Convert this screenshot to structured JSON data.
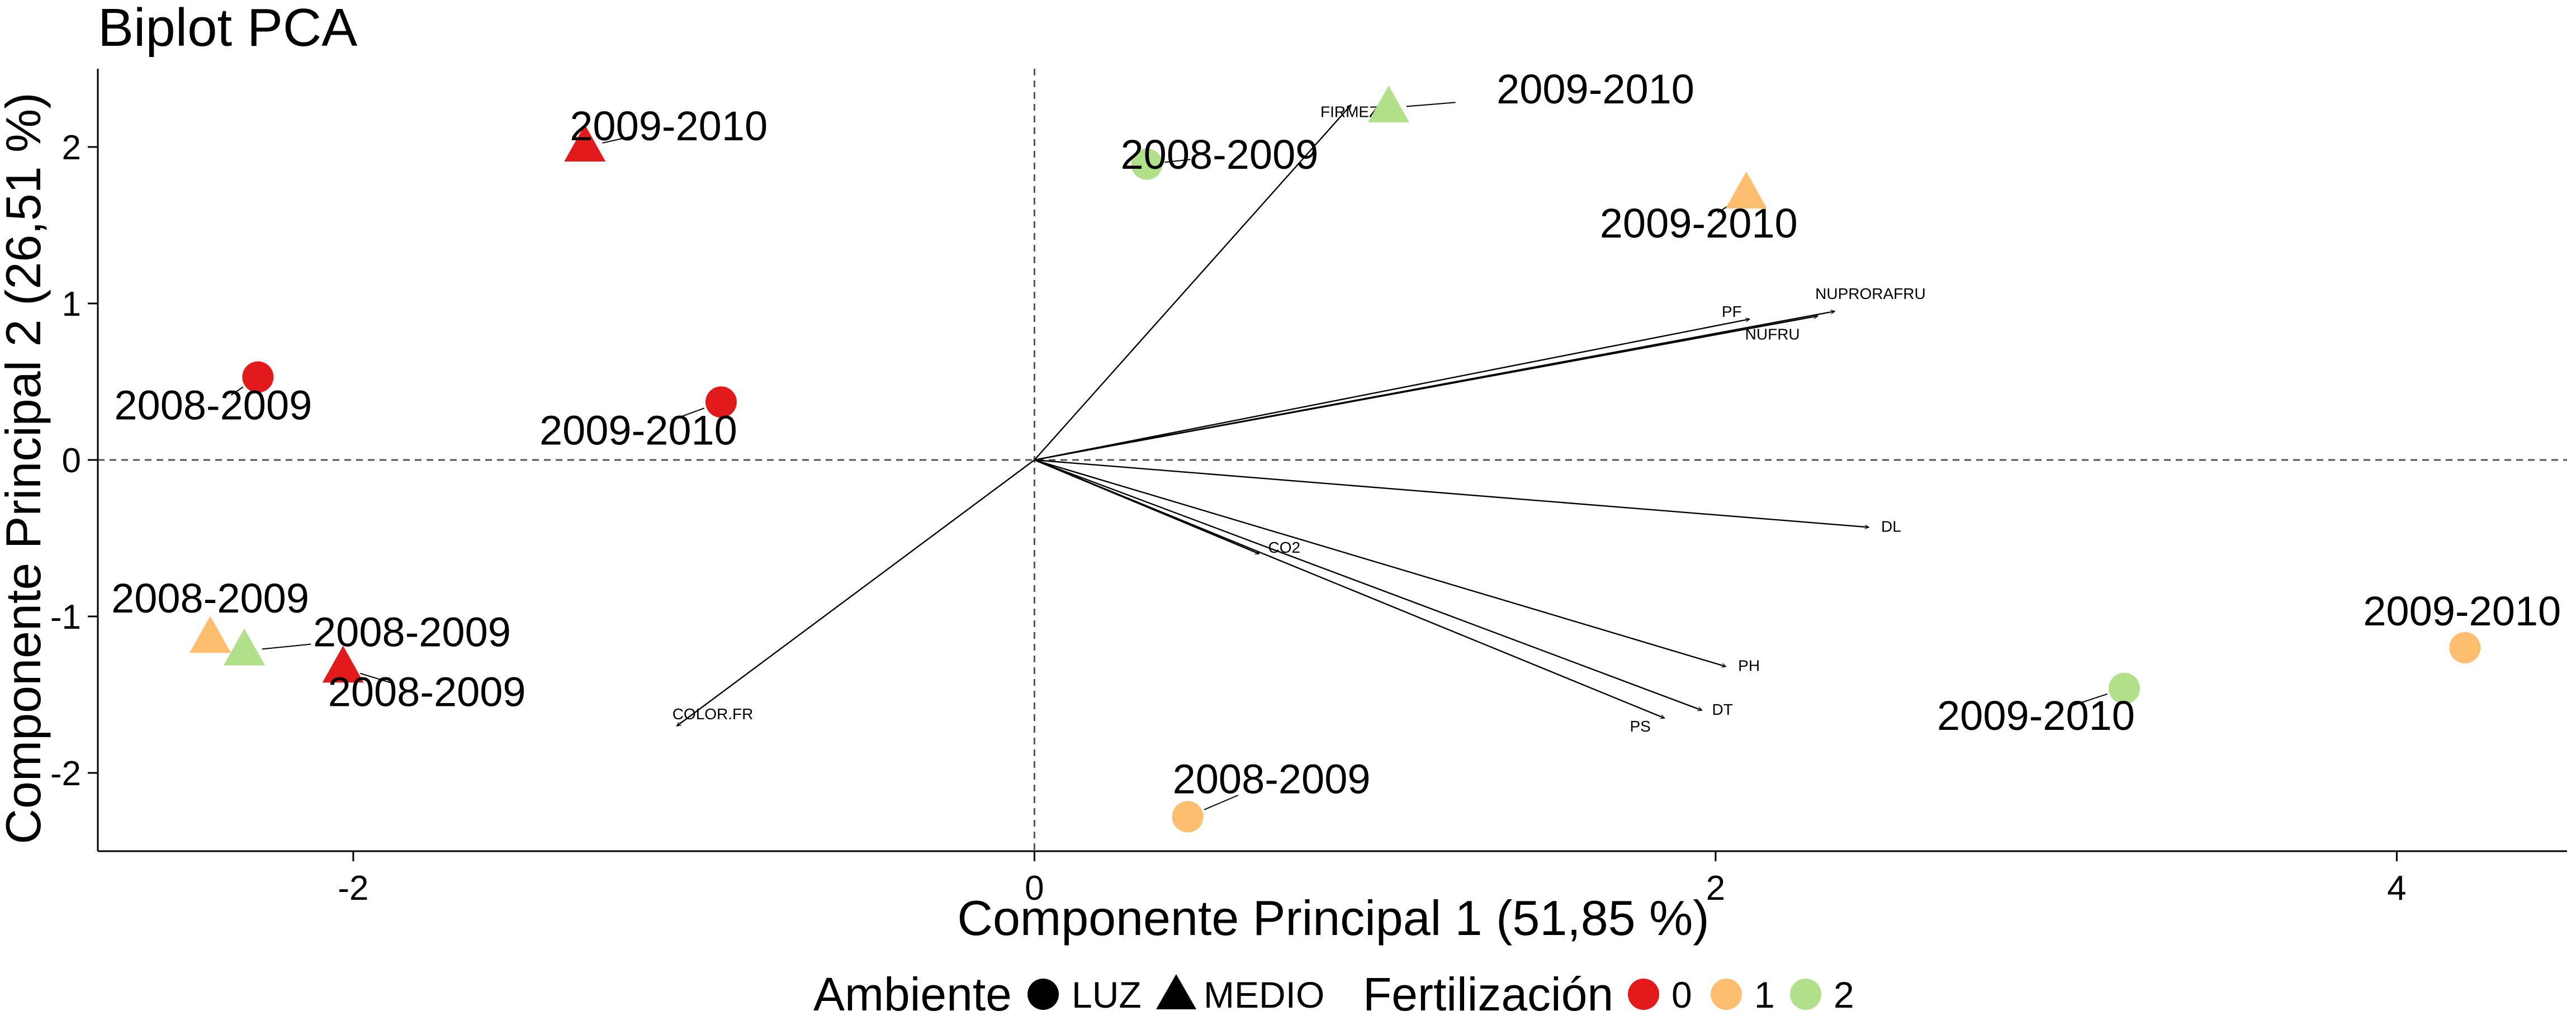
{
  "chart_data": {
    "type": "scatter",
    "title": "Biplot PCA",
    "xlabel": "Componente Principal 1 (51,85 %)",
    "ylabel": "Componente Principal 2 (26,51 %)",
    "xlim": [
      -2.75,
      4.5
    ],
    "ylim": [
      -2.5,
      2.5
    ],
    "x_ticks": [
      -2,
      0,
      2,
      4
    ],
    "y_ticks": [
      -2,
      -1,
      0,
      1,
      2
    ],
    "grid": false,
    "reference_lines": {
      "x": 0,
      "y": 0,
      "style": "dashed"
    },
    "points": [
      {
        "x": -1.32,
        "y": 2.0,
        "ambiente": "MEDIO",
        "fert": "0",
        "label": "2009-2010"
      },
      {
        "x": 1.04,
        "y": 2.25,
        "ambiente": "MEDIO",
        "fert": "2",
        "label": "2009-2010"
      },
      {
        "x": 0.33,
        "y": 1.89,
        "ambiente": "LUZ",
        "fert": "2",
        "label": "2008-2009"
      },
      {
        "x": 2.09,
        "y": 1.7,
        "ambiente": "MEDIO",
        "fert": "1",
        "label": "2009-2010"
      },
      {
        "x": -2.28,
        "y": 0.53,
        "ambiente": "LUZ",
        "fert": "0",
        "label": "2008-2009"
      },
      {
        "x": -0.92,
        "y": 0.37,
        "ambiente": "LUZ",
        "fert": "0",
        "label": "2009-2010"
      },
      {
        "x": -2.42,
        "y": -1.14,
        "ambiente": "MEDIO",
        "fert": "1",
        "label": "2008-2009"
      },
      {
        "x": -2.32,
        "y": -1.22,
        "ambiente": "MEDIO",
        "fert": "2",
        "label": "2008-2009"
      },
      {
        "x": -2.03,
        "y": -1.33,
        "ambiente": "MEDIO",
        "fert": "0",
        "label": "2008-2009"
      },
      {
        "x": 0.45,
        "y": -2.28,
        "ambiente": "LUZ",
        "fert": "1",
        "label": "2008-2009"
      },
      {
        "x": 3.2,
        "y": -1.46,
        "ambiente": "LUZ",
        "fert": "2",
        "label": "2009-2010"
      },
      {
        "x": 4.2,
        "y": -1.2,
        "ambiente": "LUZ",
        "fert": "1",
        "label": "2009-2010"
      }
    ],
    "loadings": [
      {
        "name": "FIRMEZA",
        "x": 0.93,
        "y": 2.27
      },
      {
        "name": "PF",
        "x": 2.1,
        "y": 0.9
      },
      {
        "name": "NUPRORAFRU",
        "x": 2.35,
        "y": 0.95
      },
      {
        "name": "NUFRU",
        "x": 2.3,
        "y": 0.92
      },
      {
        "name": "DL",
        "x": 2.45,
        "y": -0.43
      },
      {
        "name": "CO2",
        "x": 0.66,
        "y": -0.6
      },
      {
        "name": "PH",
        "x": 2.03,
        "y": -1.32
      },
      {
        "name": "DT",
        "x": 1.96,
        "y": -1.6
      },
      {
        "name": "PS",
        "x": 1.85,
        "y": -1.65
      },
      {
        "name": "COLOR.FR",
        "x": -1.05,
        "y": -1.7
      }
    ],
    "legend": {
      "position": "bottom",
      "ambiente_title": "Ambiente",
      "ambiente_items": [
        "LUZ",
        "MEDIO"
      ],
      "fert_title": "Fertilización",
      "fert_items": [
        "0",
        "1",
        "2"
      ]
    },
    "colors": {
      "0": "#e31a1c",
      "1": "#fdbf6f",
      "2": "#b2df8a"
    }
  }
}
